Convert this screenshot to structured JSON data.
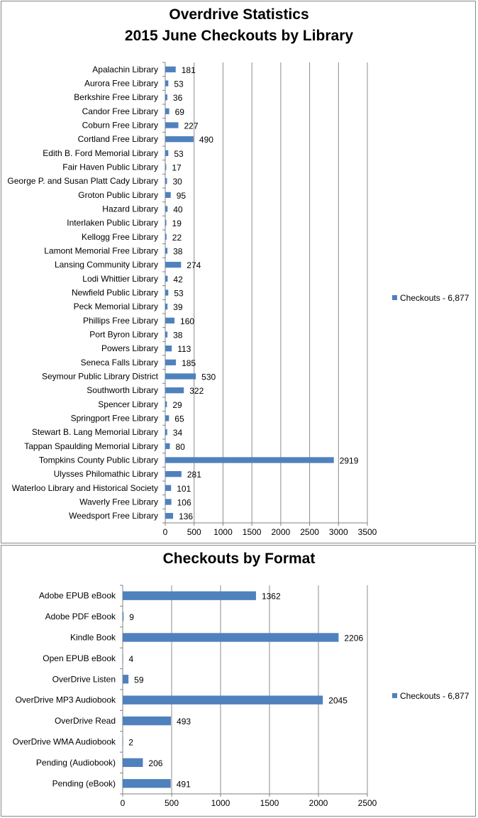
{
  "chart_data": [
    {
      "type": "bar",
      "orientation": "horizontal",
      "title": [
        "Overdrive Statistics",
        "2015 June Checkouts by Library"
      ],
      "categories": [
        "Apalachin Library",
        "Aurora Free Library",
        "Berkshire Free Library",
        "Candor Free Library",
        "Coburn Free Library",
        "Cortland Free Library",
        "Edith B. Ford Memorial Library",
        "Fair Haven Public Library",
        "George P. and Susan Platt Cady Library",
        "Groton Public Library",
        "Hazard Library",
        "Interlaken Public Library",
        "Kellogg Free Library",
        "Lamont Memorial Free Library",
        "Lansing Community Library",
        "Lodi Whittier Library",
        "Newfield Public Library",
        "Peck Memorial Library",
        "Phillips Free Library",
        "Port Byron Library",
        "Powers Library",
        "Seneca Falls Library",
        "Seymour Public Library District",
        "Southworth Library",
        "Spencer Library",
        "Springport Free Library",
        "Stewart B. Lang Memorial Library",
        "Tappan Spaulding Memorial Library",
        "Tompkins County Public Library",
        "Ulysses Philomathic Library",
        "Waterloo Library and Historical Society",
        "Waverly Free Library",
        "Weedsport Free Library"
      ],
      "series": [
        {
          "name": "Checkouts - 6,877",
          "values": [
            181,
            53,
            36,
            69,
            227,
            490,
            53,
            17,
            30,
            95,
            40,
            19,
            22,
            38,
            274,
            42,
            53,
            39,
            160,
            38,
            113,
            185,
            530,
            322,
            29,
            65,
            34,
            80,
            2919,
            281,
            101,
            106,
            136
          ]
        }
      ],
      "xlim": [
        0,
        3500
      ],
      "xticks": [
        0,
        500,
        1000,
        1500,
        2000,
        2500,
        3000,
        3500
      ],
      "grid": true,
      "legend": "right",
      "color": "#4f81bd"
    },
    {
      "type": "bar",
      "orientation": "horizontal",
      "title": [
        "Checkouts by Format"
      ],
      "categories": [
        "Adobe EPUB eBook",
        "Adobe PDF eBook",
        "Kindle Book",
        "Open EPUB eBook",
        "OverDrive Listen",
        "OverDrive MP3 Audiobook",
        "OverDrive Read",
        "OverDrive WMA Audiobook",
        "Pending (Audiobook)",
        "Pending (eBook)"
      ],
      "series": [
        {
          "name": "Checkouts - 6,877",
          "values": [
            1362,
            9,
            2206,
            4,
            59,
            2045,
            493,
            2,
            206,
            491
          ]
        }
      ],
      "xlim": [
        0,
        2500
      ],
      "xticks": [
        0,
        500,
        1000,
        1500,
        2000,
        2500
      ],
      "grid": true,
      "legend": "right",
      "color": "#4f81bd"
    }
  ]
}
